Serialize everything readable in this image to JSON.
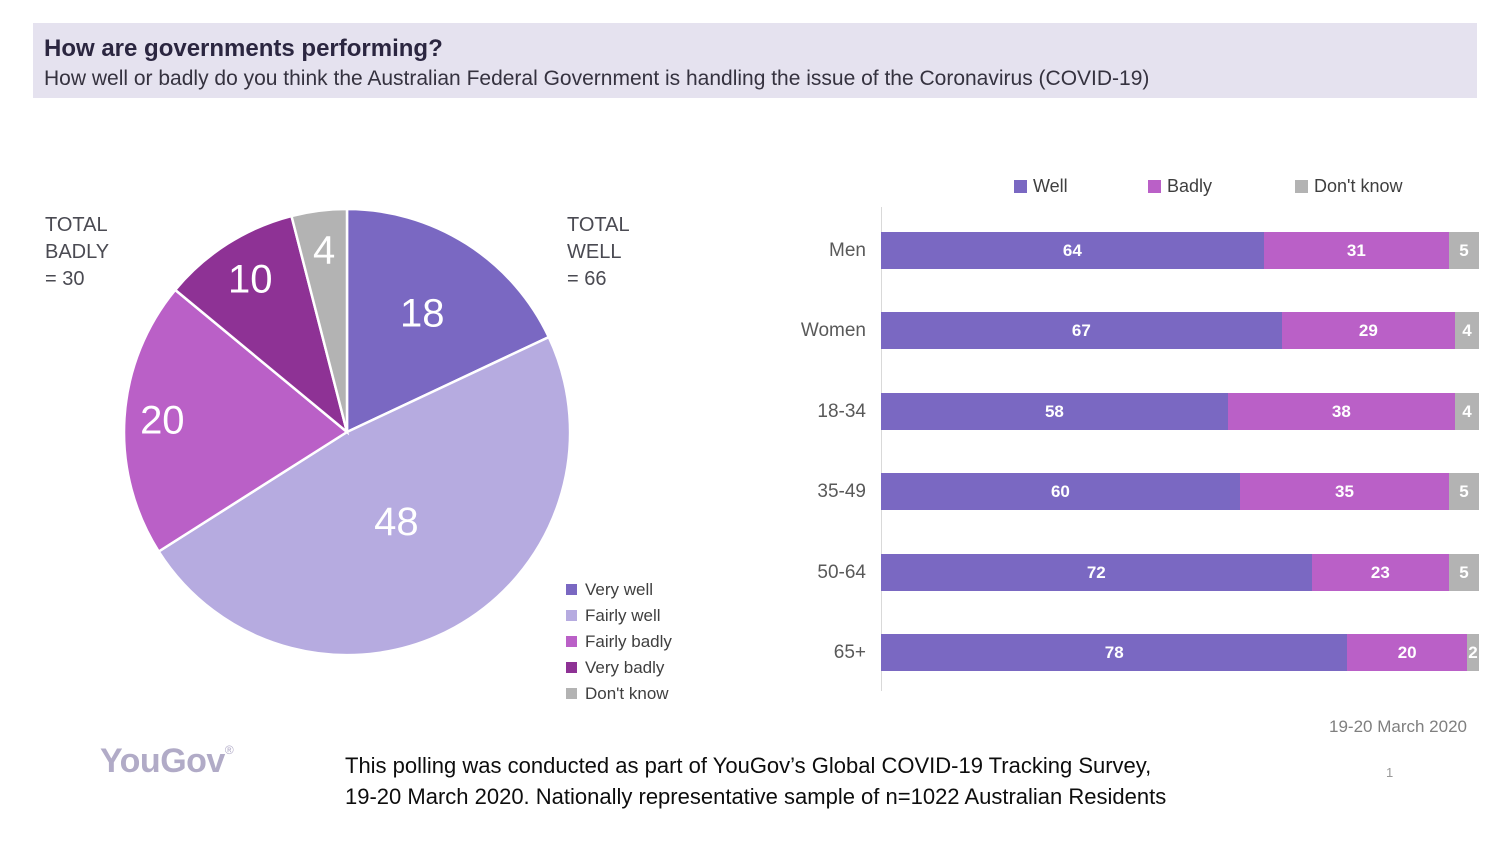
{
  "header": {
    "title": "How are governments performing?",
    "subtitle": "How well or badly do you think the Australian Federal Government is handling the issue of the Coronavirus (COVID-19)"
  },
  "chart_data": [
    {
      "type": "pie",
      "start_angle_deg": 0,
      "direction": "clockwise",
      "slices": [
        {
          "label": "Very well",
          "value": 18,
          "color": "#7A68C2"
        },
        {
          "label": "Fairly well",
          "value": 48,
          "color": "#B6ABE0"
        },
        {
          "label": "Fairly badly",
          "value": 20,
          "color": "#BA60C7"
        },
        {
          "label": "Very badly",
          "value": 10,
          "color": "#8E3295"
        },
        {
          "label": "Don't know",
          "value": 4,
          "color": "#B3B3B3"
        }
      ],
      "annotations": [
        "TOTAL\nWELL\n= 66",
        "TOTAL\nBADLY\n= 30"
      ],
      "legend_position": "bottom-right"
    },
    {
      "type": "bar",
      "orientation": "horizontal-stacked",
      "categories": [
        "Men",
        "Women",
        "18-34",
        "35-49",
        "50-64",
        "65+"
      ],
      "series": [
        {
          "name": "Well",
          "color": "#7A68C2",
          "values": [
            64,
            67,
            58,
            60,
            72,
            78
          ]
        },
        {
          "name": "Badly",
          "color": "#BA60C7",
          "values": [
            31,
            29,
            38,
            35,
            23,
            20
          ]
        },
        {
          "name": "Don't know",
          "color": "#B3B3B3",
          "values": [
            5,
            4,
            4,
            5,
            5,
            2
          ]
        }
      ],
      "xlim": [
        0,
        100
      ],
      "legend_position": "top",
      "grid": false,
      "note": "19-20 March 2020"
    }
  ],
  "footer": {
    "logo_text": "YouGov",
    "logo_mark": "®",
    "note_lines": [
      "This polling was conducted as part of YouGov’s Global COVID-19 Tracking Survey,",
      "19-20 March 2020. Nationally representative sample of n=1022 Australian Residents"
    ],
    "page_number": "1"
  }
}
